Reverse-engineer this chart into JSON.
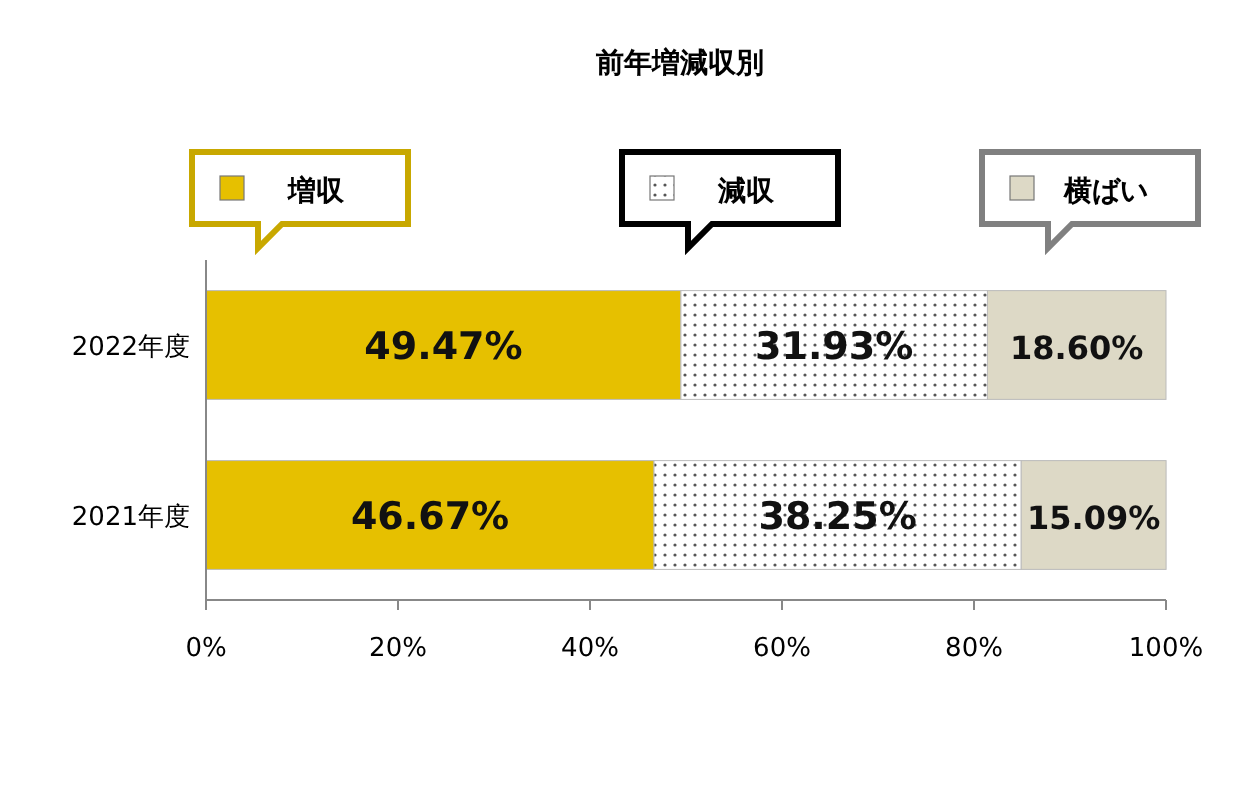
{
  "chart_data": {
    "type": "bar",
    "orientation": "horizontal",
    "stacked": true,
    "title": "前年増減収別",
    "categories": [
      "2022年度",
      "2021年度"
    ],
    "series": [
      {
        "name": "増収",
        "color": "#e6c000",
        "values": [
          49.47,
          46.67
        ],
        "value_labels": [
          "49.47%",
          "46.67%"
        ]
      },
      {
        "name": "減収",
        "color": "#ffffff",
        "values": [
          31.93,
          38.25
        ],
        "value_labels": [
          "31.93%",
          "38.25%"
        ]
      },
      {
        "name": "横ばい",
        "color": "#ddd9c6",
        "values": [
          18.6,
          15.09
        ],
        "value_labels": [
          "18.60%",
          "15.09%"
        ]
      }
    ],
    "xlim": [
      0,
      100
    ],
    "xticks": [
      {
        "value": 0,
        "label": "0%"
      },
      {
        "value": 20,
        "label": "20%"
      },
      {
        "value": 40,
        "label": "40%"
      },
      {
        "value": 60,
        "label": "60%"
      },
      {
        "value": 80,
        "label": "80%"
      },
      {
        "value": 100,
        "label": "100%"
      }
    ],
    "legend": "top",
    "grid": false
  }
}
